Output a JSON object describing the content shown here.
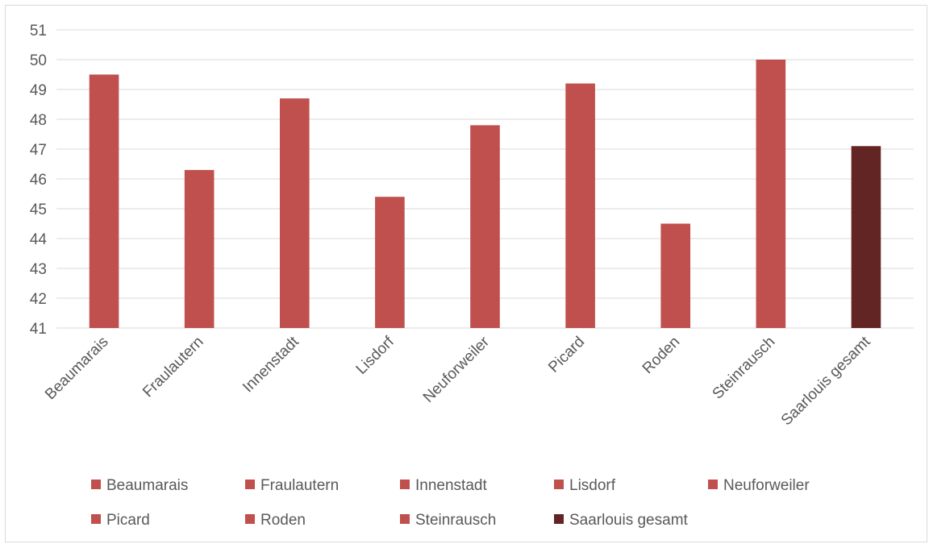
{
  "chart_data": {
    "type": "bar",
    "title": "",
    "xlabel": "",
    "ylabel": "",
    "categories": [
      "Beaumarais",
      "Fraulautern",
      "Innenstadt",
      "Lisdorf",
      "Neuforweiler",
      "Picard",
      "Roden",
      "Steinrausch",
      "Saarlouis gesamt"
    ],
    "values": [
      49.5,
      46.3,
      48.7,
      45.4,
      47.8,
      49.2,
      44.5,
      50.0,
      47.1
    ],
    "colors": [
      "#c0504d",
      "#c0504d",
      "#c0504d",
      "#c0504d",
      "#c0504d",
      "#c0504d",
      "#c0504d",
      "#c0504d",
      "#632523"
    ],
    "ylim": [
      41,
      51
    ],
    "yticks": [
      41,
      42,
      43,
      44,
      45,
      46,
      47,
      48,
      49,
      50,
      51
    ],
    "grid": true,
    "legend": {
      "position": "bottom",
      "entries": [
        "Beaumarais",
        "Fraulautern",
        "Innenstadt",
        "Lisdorf",
        "Neuforweiler",
        "Picard",
        "Roden",
        "Steinrausch",
        "Saarlouis gesamt"
      ]
    },
    "colors_style": {
      "bar": "#c0504d",
      "total_bar": "#632523",
      "grid": "#d9d9d9",
      "text": "#595959"
    }
  }
}
